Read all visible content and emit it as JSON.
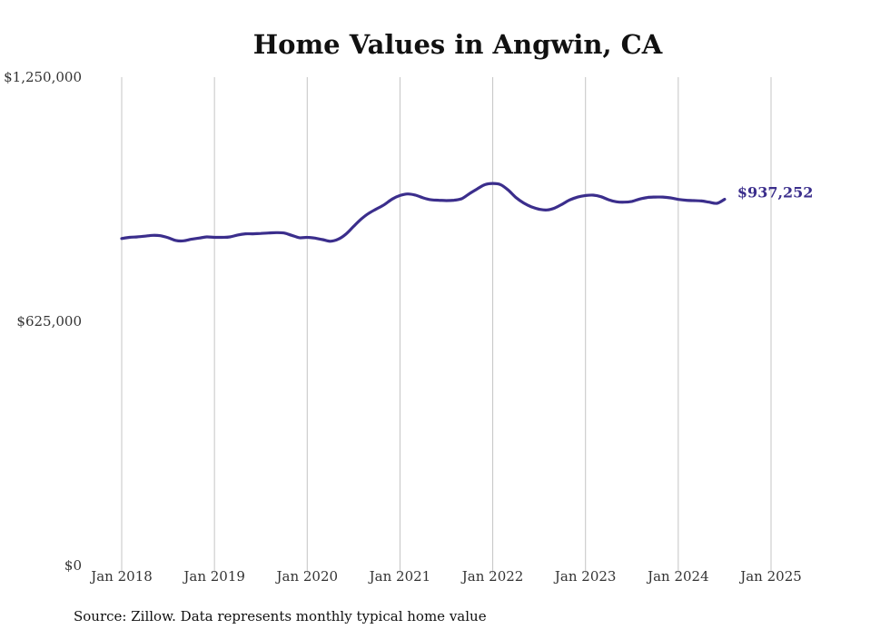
{
  "chart_data": {
    "type": "line",
    "title": "Home Values in Angwin, CA",
    "source": "Source: Zillow. Data represents monthly typical home value",
    "xlabel": "",
    "ylabel": "",
    "ylim": [
      0,
      1250000
    ],
    "y_ticks": [
      {
        "value": 1250000,
        "label": "$1,250,000"
      },
      {
        "value": 625000,
        "label": "$625,000"
      },
      {
        "value": 0,
        "label": "$0"
      }
    ],
    "x_ticks": [
      {
        "value": "2018-01",
        "label": "Jan 2018"
      },
      {
        "value": "2019-01",
        "label": "Jan 2019"
      },
      {
        "value": "2020-01",
        "label": "Jan 2020"
      },
      {
        "value": "2021-01",
        "label": "Jan 2021"
      },
      {
        "value": "2022-01",
        "label": "Jan 2022"
      },
      {
        "value": "2023-01",
        "label": "Jan 2023"
      },
      {
        "value": "2024-01",
        "label": "Jan 2024"
      },
      {
        "value": "2025-01",
        "label": "Jan 2025"
      }
    ],
    "grid": {
      "vertical": true,
      "horizontal": false
    },
    "line_color": "#3b2e8c",
    "end_label": "$937,252",
    "series": [
      {
        "values": [
          [
            "2018-01",
            837000
          ],
          [
            "2018-02",
            840000
          ],
          [
            "2018-03",
            841000
          ],
          [
            "2018-04",
            843000
          ],
          [
            "2018-05",
            845000
          ],
          [
            "2018-06",
            844000
          ],
          [
            "2018-07",
            839000
          ],
          [
            "2018-08",
            832000
          ],
          [
            "2018-09",
            831000
          ],
          [
            "2018-10",
            835000
          ],
          [
            "2018-11",
            838000
          ],
          [
            "2018-12",
            841000
          ],
          [
            "2019-01",
            840000
          ],
          [
            "2019-02",
            840000
          ],
          [
            "2019-03",
            841000
          ],
          [
            "2019-04",
            846000
          ],
          [
            "2019-05",
            849000
          ],
          [
            "2019-06",
            849000
          ],
          [
            "2019-07",
            850000
          ],
          [
            "2019-08",
            851000
          ],
          [
            "2019-09",
            852000
          ],
          [
            "2019-10",
            851000
          ],
          [
            "2019-11",
            845000
          ],
          [
            "2019-12",
            839000
          ],
          [
            "2020-01",
            840000
          ],
          [
            "2020-02",
            838000
          ],
          [
            "2020-03",
            834000
          ],
          [
            "2020-04",
            830000
          ],
          [
            "2020-05",
            835000
          ],
          [
            "2020-06",
            848000
          ],
          [
            "2020-07",
            868000
          ],
          [
            "2020-08",
            887000
          ],
          [
            "2020-09",
            902000
          ],
          [
            "2020-10",
            913000
          ],
          [
            "2020-11",
            924000
          ],
          [
            "2020-12",
            938000
          ],
          [
            "2021-01",
            947000
          ],
          [
            "2021-02",
            951000
          ],
          [
            "2021-03",
            948000
          ],
          [
            "2021-04",
            941000
          ],
          [
            "2021-05",
            936000
          ],
          [
            "2021-06",
            935000
          ],
          [
            "2021-07",
            934000
          ],
          [
            "2021-08",
            935000
          ],
          [
            "2021-09",
            939000
          ],
          [
            "2021-10",
            952000
          ],
          [
            "2021-11",
            964000
          ],
          [
            "2021-12",
            975000
          ],
          [
            "2022-01",
            978000
          ],
          [
            "2022-02",
            975000
          ],
          [
            "2022-03",
            961000
          ],
          [
            "2022-04",
            942000
          ],
          [
            "2022-05",
            928000
          ],
          [
            "2022-06",
            918000
          ],
          [
            "2022-07",
            912000
          ],
          [
            "2022-08",
            910000
          ],
          [
            "2022-09",
            915000
          ],
          [
            "2022-10",
            925000
          ],
          [
            "2022-11",
            936000
          ],
          [
            "2022-12",
            943000
          ],
          [
            "2023-01",
            947000
          ],
          [
            "2023-02",
            948000
          ],
          [
            "2023-03",
            944000
          ],
          [
            "2023-04",
            936000
          ],
          [
            "2023-05",
            931000
          ],
          [
            "2023-06",
            930000
          ],
          [
            "2023-07",
            932000
          ],
          [
            "2023-08",
            938000
          ],
          [
            "2023-09",
            942000
          ],
          [
            "2023-10",
            943000
          ],
          [
            "2023-11",
            943000
          ],
          [
            "2023-12",
            941000
          ],
          [
            "2024-01",
            937000
          ],
          [
            "2024-02",
            935000
          ],
          [
            "2024-03",
            934000
          ],
          [
            "2024-04",
            933000
          ],
          [
            "2024-05",
            930000
          ],
          [
            "2024-06",
            927000
          ],
          [
            "2024-07",
            937252
          ]
        ]
      }
    ]
  }
}
